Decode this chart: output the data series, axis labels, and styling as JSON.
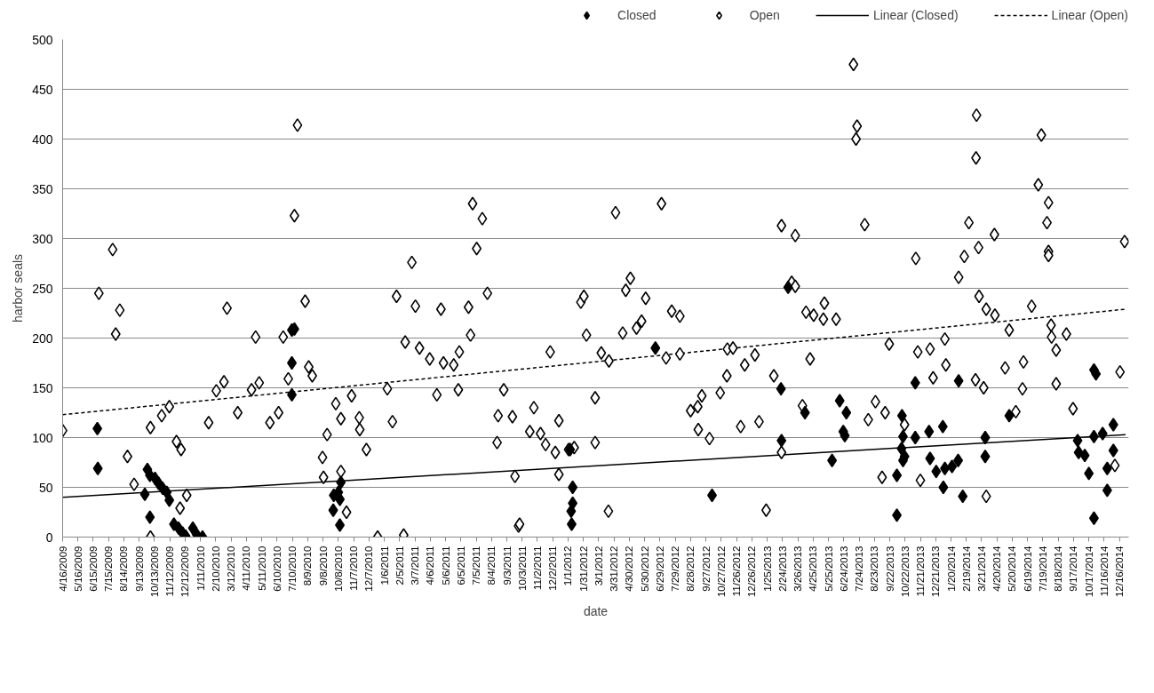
{
  "chart_data": {
    "type": "scatter",
    "xlabel": "date",
    "ylabel": "harbor seals",
    "grid": "y",
    "legend": "top",
    "xlim": [
      "2009-04-16",
      "2015-01-03"
    ],
    "ylim": [
      0,
      500
    ],
    "yticks": [
      0,
      50,
      100,
      150,
      200,
      250,
      300,
      350,
      400,
      450,
      500
    ],
    "xticks": [
      {
        "value": "2009-04-16",
        "label": "4/16/2009"
      },
      {
        "value": "2009-05-16",
        "label": "5/16/2009"
      },
      {
        "value": "2009-06-15",
        "label": "6/15/2009"
      },
      {
        "value": "2009-07-15",
        "label": "7/15/2009"
      },
      {
        "value": "2009-08-14",
        "label": "8/14/2009"
      },
      {
        "value": "2009-09-13",
        "label": "9/13/2009"
      },
      {
        "value": "2009-10-13",
        "label": "10/13/2009"
      },
      {
        "value": "2009-11-12",
        "label": "11/12/2009"
      },
      {
        "value": "2009-12-12",
        "label": "12/12/2009"
      },
      {
        "value": "2010-01-11",
        "label": "1/11/2010"
      },
      {
        "value": "2010-02-10",
        "label": "2/10/2010"
      },
      {
        "value": "2010-03-12",
        "label": "3/12/2010"
      },
      {
        "value": "2010-04-11",
        "label": "4/11/2010"
      },
      {
        "value": "2010-05-11",
        "label": "5/11/2010"
      },
      {
        "value": "2010-06-10",
        "label": "6/10/2010"
      },
      {
        "value": "2010-07-10",
        "label": "7/10/2010"
      },
      {
        "value": "2010-08-09",
        "label": "8/9/2010"
      },
      {
        "value": "2010-09-08",
        "label": "9/8/2010"
      },
      {
        "value": "2010-10-08",
        "label": "10/8/2010"
      },
      {
        "value": "2010-11-07",
        "label": "11/7/2010"
      },
      {
        "value": "2010-12-07",
        "label": "12/7/2010"
      },
      {
        "value": "2011-01-06",
        "label": "1/6/2011"
      },
      {
        "value": "2011-02-05",
        "label": "2/5/2011"
      },
      {
        "value": "2011-03-07",
        "label": "3/7/2011"
      },
      {
        "value": "2011-04-06",
        "label": "4/6/2011"
      },
      {
        "value": "2011-05-06",
        "label": "5/6/2011"
      },
      {
        "value": "2011-06-05",
        "label": "6/5/2011"
      },
      {
        "value": "2011-07-05",
        "label": "7/5/2011"
      },
      {
        "value": "2011-08-04",
        "label": "8/4/2011"
      },
      {
        "value": "2011-09-03",
        "label": "9/3/2011"
      },
      {
        "value": "2011-10-03",
        "label": "10/3/2011"
      },
      {
        "value": "2011-11-02",
        "label": "11/2/2011"
      },
      {
        "value": "2011-12-02",
        "label": "12/2/2011"
      },
      {
        "value": "2012-01-01",
        "label": "1/1/2012"
      },
      {
        "value": "2012-01-31",
        "label": "1/31/2012"
      },
      {
        "value": "2012-03-01",
        "label": "3/1/2012"
      },
      {
        "value": "2012-03-31",
        "label": "3/31/2012"
      },
      {
        "value": "2012-04-30",
        "label": "4/30/2012"
      },
      {
        "value": "2012-05-30",
        "label": "5/30/2012"
      },
      {
        "value": "2012-06-29",
        "label": "6/29/2012"
      },
      {
        "value": "2012-07-29",
        "label": "7/29/2012"
      },
      {
        "value": "2012-08-28",
        "label": "8/28/2012"
      },
      {
        "value": "2012-09-27",
        "label": "9/27/2012"
      },
      {
        "value": "2012-10-27",
        "label": "10/27/2012"
      },
      {
        "value": "2012-11-26",
        "label": "11/26/2012"
      },
      {
        "value": "2012-12-26",
        "label": "12/26/2012"
      },
      {
        "value": "2013-01-25",
        "label": "1/25/2013"
      },
      {
        "value": "2013-02-24",
        "label": "2/24/2013"
      },
      {
        "value": "2013-03-26",
        "label": "3/26/2013"
      },
      {
        "value": "2013-04-25",
        "label": "4/25/2013"
      },
      {
        "value": "2013-05-25",
        "label": "5/25/2013"
      },
      {
        "value": "2013-06-24",
        "label": "6/24/2013"
      },
      {
        "value": "2013-07-24",
        "label": "7/24/2013"
      },
      {
        "value": "2013-08-23",
        "label": "8/23/2013"
      },
      {
        "value": "2013-09-22",
        "label": "9/22/2013"
      },
      {
        "value": "2013-10-22",
        "label": "10/22/2013"
      },
      {
        "value": "2013-11-21",
        "label": "11/21/2013"
      },
      {
        "value": "2013-12-21",
        "label": "12/21/2013"
      },
      {
        "value": "2014-01-20",
        "label": "1/20/2014"
      },
      {
        "value": "2014-02-19",
        "label": "2/19/2014"
      },
      {
        "value": "2014-03-21",
        "label": "3/21/2014"
      },
      {
        "value": "2014-04-20",
        "label": "4/20/2014"
      },
      {
        "value": "2014-05-20",
        "label": "5/20/2014"
      },
      {
        "value": "2014-06-19",
        "label": "6/19/2014"
      },
      {
        "value": "2014-07-19",
        "label": "7/19/2014"
      },
      {
        "value": "2014-08-18",
        "label": "8/18/2014"
      },
      {
        "value": "2014-09-17",
        "label": "9/17/2014"
      },
      {
        "value": "2014-10-17",
        "label": "10/17/2014"
      },
      {
        "value": "2014-11-16",
        "label": "11/16/2014"
      },
      {
        "value": "2014-12-16",
        "label": "12/16/2014"
      }
    ],
    "series": [
      {
        "name": "Closed",
        "color": "#000000",
        "marker": "diamond",
        "x": [
          "2009-06-23",
          "2009-06-24",
          "2009-09-24",
          "2009-09-29",
          "2009-10-04",
          "2009-10-04",
          "2009-10-14",
          "2009-10-21",
          "2009-10-29",
          "2009-11-06",
          "2009-11-11",
          "2009-11-20",
          "2009-11-29",
          "2009-12-07",
          "2009-12-13",
          "2009-12-27",
          "2010-01-03",
          "2010-01-15",
          "2010-07-09",
          "2010-07-09",
          "2010-07-09",
          "2010-07-14",
          "2010-09-28",
          "2010-09-29",
          "2010-10-08",
          "2010-10-11",
          "2010-10-13",
          "2010-10-11",
          "2012-01-05",
          "2012-01-07",
          "2012-01-08",
          "2012-01-10",
          "2012-01-10",
          "2012-06-20",
          "2012-10-09",
          "2013-02-21",
          "2013-02-22",
          "2013-03-07",
          "2013-04-09",
          "2013-06-01",
          "2013-06-16",
          "2013-06-23",
          "2013-06-26",
          "2013-06-29",
          "2013-10-06",
          "2013-10-06",
          "2013-10-15",
          "2013-10-16",
          "2013-10-18",
          "2013-10-18",
          "2013-10-21",
          "2013-11-11",
          "2013-11-11",
          "2013-12-08",
          "2013-12-10",
          "2013-12-22",
          "2014-01-04",
          "2014-01-05",
          "2014-01-08",
          "2014-01-22",
          "2014-02-03",
          "2014-02-04",
          "2014-02-12",
          "2014-03-28",
          "2014-03-28",
          "2014-05-14",
          "2014-09-25",
          "2014-09-27",
          "2014-10-09",
          "2014-10-17",
          "2014-10-27",
          "2014-10-27",
          "2014-10-27",
          "2014-10-31",
          "2014-11-13",
          "2014-11-22",
          "2014-11-22",
          "2014-12-04",
          "2014-12-04"
        ],
        "values": [
          109,
          69,
          43,
          68,
          62,
          20,
          59,
          54,
          49,
          45,
          37,
          13,
          9,
          4,
          1,
          9,
          3,
          0,
          208,
          175,
          143,
          209,
          27,
          42,
          45,
          38,
          55,
          12,
          88,
          26,
          13,
          50,
          34,
          190,
          42,
          149,
          97,
          251,
          125,
          77,
          137,
          106,
          102,
          125,
          62,
          22,
          89,
          122,
          101,
          77,
          81,
          155,
          100,
          106,
          79,
          66,
          111,
          50,
          69,
          71,
          77,
          157,
          41,
          100,
          81,
          122,
          97,
          85,
          82,
          64,
          19,
          168,
          101,
          164,
          104,
          69,
          47,
          113,
          87
        ]
      },
      {
        "name": "Open",
        "color": "#ffffff",
        "marker": "diamond",
        "x": [
          "2009-04-16",
          "2009-06-26",
          "2009-07-23",
          "2009-07-29",
          "2009-08-06",
          "2009-08-21",
          "2009-09-03",
          "2009-10-05",
          "2009-10-05",
          "2009-10-27",
          "2009-11-11",
          "2009-11-25",
          "2009-12-02",
          "2009-12-04",
          "2009-12-15",
          "2010-01-27",
          "2010-02-11",
          "2010-02-26",
          "2010-03-04",
          "2010-03-25",
          "2010-04-21",
          "2010-04-29",
          "2010-05-06",
          "2010-05-27",
          "2010-06-13",
          "2010-06-22",
          "2010-07-02",
          "2010-07-14",
          "2010-07-20",
          "2010-08-04",
          "2010-08-11",
          "2010-08-18",
          "2010-09-07",
          "2010-09-09",
          "2010-09-16",
          "2010-10-03",
          "2010-10-13",
          "2010-10-13",
          "2010-10-24",
          "2010-11-03",
          "2010-11-18",
          "2010-11-19",
          "2010-12-02",
          "2010-12-24",
          "2011-01-12",
          "2011-01-22",
          "2011-01-30",
          "2011-02-13",
          "2011-02-16",
          "2011-03-01",
          "2011-03-08",
          "2011-03-16",
          "2011-04-05",
          "2011-04-19",
          "2011-04-27",
          "2011-05-02",
          "2011-05-22",
          "2011-05-31",
          "2011-06-02",
          "2011-06-20",
          "2011-06-24",
          "2011-06-28",
          "2011-07-06",
          "2011-07-17",
          "2011-07-27",
          "2011-08-15",
          "2011-08-17",
          "2011-08-28",
          "2011-09-14",
          "2011-09-19",
          "2011-09-26",
          "2011-09-28",
          "2011-10-18",
          "2011-10-26",
          "2011-11-08",
          "2011-11-18",
          "2011-11-27",
          "2011-12-07",
          "2011-12-14",
          "2011-12-14",
          "2012-01-02",
          "2012-01-13",
          "2012-01-26",
          "2012-02-01",
          "2012-02-06",
          "2012-02-23",
          "2012-02-23",
          "2012-03-06",
          "2012-03-20",
          "2012-03-21",
          "2012-04-03",
          "2012-04-17",
          "2012-04-23",
          "2012-05-02",
          "2012-05-14",
          "2012-05-24",
          "2012-06-01",
          "2012-07-02",
          "2012-07-11",
          "2012-07-22",
          "2012-08-07",
          "2012-08-07",
          "2012-08-28",
          "2012-09-11",
          "2012-09-12",
          "2012-09-19",
          "2012-10-04",
          "2012-10-25",
          "2012-11-07",
          "2012-11-08",
          "2012-11-19",
          "2012-12-04",
          "2012-12-12",
          "2013-01-01",
          "2013-01-09",
          "2013-01-23",
          "2013-02-07",
          "2013-02-22",
          "2013-02-22",
          "2013-03-14",
          "2013-03-21",
          "2013-03-21",
          "2013-04-04",
          "2013-04-11",
          "2013-04-19",
          "2013-04-26",
          "2013-05-15",
          "2013-05-17",
          "2013-06-09",
          "2013-07-13",
          "2013-07-18",
          "2013-07-20",
          "2013-08-04",
          "2013-08-11",
          "2013-08-25",
          "2013-09-07",
          "2013-09-13",
          "2013-09-21",
          "2013-10-21",
          "2013-11-12",
          "2013-11-16",
          "2013-11-21",
          "2013-12-10",
          "2013-12-16",
          "2014-01-08",
          "2014-01-10",
          "2014-02-04",
          "2014-02-15",
          "2014-02-24",
          "2014-03-09",
          "2014-03-10",
          "2014-03-11",
          "2014-03-15",
          "2014-03-16",
          "2014-03-25",
          "2014-03-30",
          "2014-03-30",
          "2014-04-15",
          "2014-04-16",
          "2014-05-06",
          "2014-05-14",
          "2014-05-27",
          "2014-06-09",
          "2014-06-11",
          "2014-06-27",
          "2014-07-10",
          "2014-07-16",
          "2014-07-27",
          "2014-07-30",
          "2014-07-30",
          "2014-07-30",
          "2014-08-04",
          "2014-08-05",
          "2014-08-14",
          "2014-08-14",
          "2014-09-03",
          "2014-09-16",
          "2014-12-07",
          "2014-12-17",
          "2014-12-26"
        ],
        "values": [
          107,
          245,
          289,
          204,
          228,
          81,
          53,
          110,
          0,
          122,
          131,
          96,
          29,
          88,
          42,
          115,
          147,
          156,
          230,
          125,
          148,
          201,
          155,
          115,
          125,
          201,
          159,
          323,
          414,
          237,
          171,
          162,
          80,
          60,
          103,
          134,
          119,
          66,
          25,
          142,
          120,
          108,
          88,
          0,
          149,
          116,
          242,
          2,
          196,
          276,
          232,
          190,
          179,
          143,
          229,
          175,
          173,
          148,
          186,
          231,
          203,
          335,
          290,
          320,
          245,
          95,
          122,
          148,
          121,
          61,
          11,
          13,
          106,
          130,
          104,
          93,
          186,
          85,
          117,
          63,
          88,
          90,
          236,
          242,
          203,
          140,
          95,
          185,
          26,
          177,
          326,
          205,
          248,
          260,
          210,
          217,
          240,
          335,
          180,
          227,
          222,
          184,
          127,
          131,
          108,
          142,
          99,
          145,
          162,
          189,
          190,
          111,
          173,
          183,
          116,
          27,
          162,
          313,
          85,
          256,
          303,
          252,
          132,
          226,
          179,
          223,
          219,
          235,
          219,
          475,
          400,
          413,
          314,
          118,
          136,
          60,
          125,
          194,
          113,
          280,
          186,
          57,
          189,
          160,
          199,
          173,
          261,
          282,
          316,
          158,
          381,
          424,
          291,
          242,
          150,
          229,
          41,
          304,
          223,
          170,
          208,
          126,
          149,
          176,
          232,
          354,
          404,
          316,
          336,
          287,
          283,
          213,
          201,
          188,
          154,
          204,
          129,
          72,
          166,
          297
        ]
      },
      {
        "name": "Linear (Closed)",
        "type": "line",
        "color": "#000000",
        "line_style": "solid",
        "x": [
          "2009-04-16",
          "2014-12-28"
        ],
        "values": [
          40,
          103
        ]
      },
      {
        "name": "Linear (Open)",
        "type": "line",
        "color": "#000000",
        "line_style": "dashed",
        "x": [
          "2009-04-16",
          "2014-12-28"
        ],
        "values": [
          123,
          229
        ]
      }
    ]
  }
}
